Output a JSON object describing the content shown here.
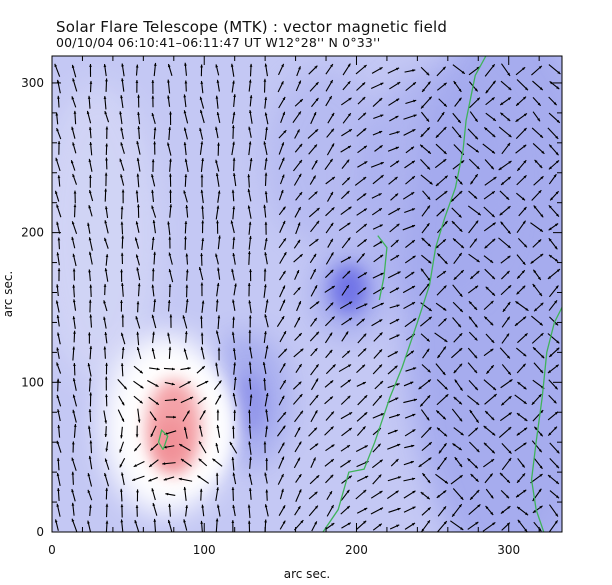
{
  "chart_data": {
    "type": "heatmap",
    "title": "Solar Flare Telescope (MTK) : vector magnetic field",
    "subtitle": "00/10/04   06:10:41–06:11:47 UT     W12°28''   N 0°33''",
    "xlabel": "arc sec.",
    "ylabel": "arc sec.",
    "xlim": [
      0,
      335
    ],
    "ylim": [
      0,
      318
    ],
    "xticks": [
      0,
      100,
      200,
      300
    ],
    "yticks": [
      0,
      100,
      200,
      300
    ],
    "grid": false,
    "legend": "none",
    "background_field": "longitudinal magnetic field (blue = negative, red = positive)",
    "colors": {
      "negative_light": "#c4c8f4",
      "negative_mid": "#a3a9ee",
      "negative_strong": "#6c6ee6",
      "neutral": "#ffffff",
      "positive": "#f4a3a8",
      "arrows": "#000000",
      "contour": "#3fb35a"
    },
    "features": [
      {
        "label": "positive polarity spot",
        "center": [
          78,
          68
        ],
        "sign": "positive"
      },
      {
        "label": "negative concentration",
        "center": [
          195,
          160
        ],
        "sign": "negative"
      },
      {
        "label": "negative concentration",
        "center": [
          128,
          85
        ],
        "sign": "negative"
      }
    ],
    "contour_lines": [
      {
        "name": "neutral line A",
        "points": [
          [
            178,
            0
          ],
          [
            188,
            15
          ],
          [
            195,
            40
          ],
          [
            205,
            42
          ],
          [
            212,
            60
          ],
          [
            222,
            90
          ],
          [
            230,
            110
          ],
          [
            240,
            140
          ],
          [
            248,
            165
          ],
          [
            252,
            190
          ],
          [
            258,
            210
          ],
          [
            265,
            230
          ],
          [
            270,
            255
          ],
          [
            272,
            275
          ],
          [
            278,
            305
          ],
          [
            285,
            318
          ]
        ]
      },
      {
        "name": "neutral line B",
        "points": [
          [
            323,
            0
          ],
          [
            318,
            15
          ],
          [
            315,
            35
          ],
          [
            318,
            60
          ],
          [
            322,
            90
          ],
          [
            325,
            120
          ],
          [
            330,
            140
          ],
          [
            335,
            150
          ]
        ]
      },
      {
        "name": "neutral line C",
        "points": [
          [
            215,
            155
          ],
          [
            218,
            170
          ],
          [
            220,
            190
          ],
          [
            214,
            198
          ]
        ]
      },
      {
        "name": "positive spot contour",
        "points": [
          [
            73,
            55
          ],
          [
            76,
            64
          ],
          [
            72,
            68
          ],
          [
            70,
            60
          ],
          [
            73,
            55
          ]
        ]
      }
    ]
  }
}
